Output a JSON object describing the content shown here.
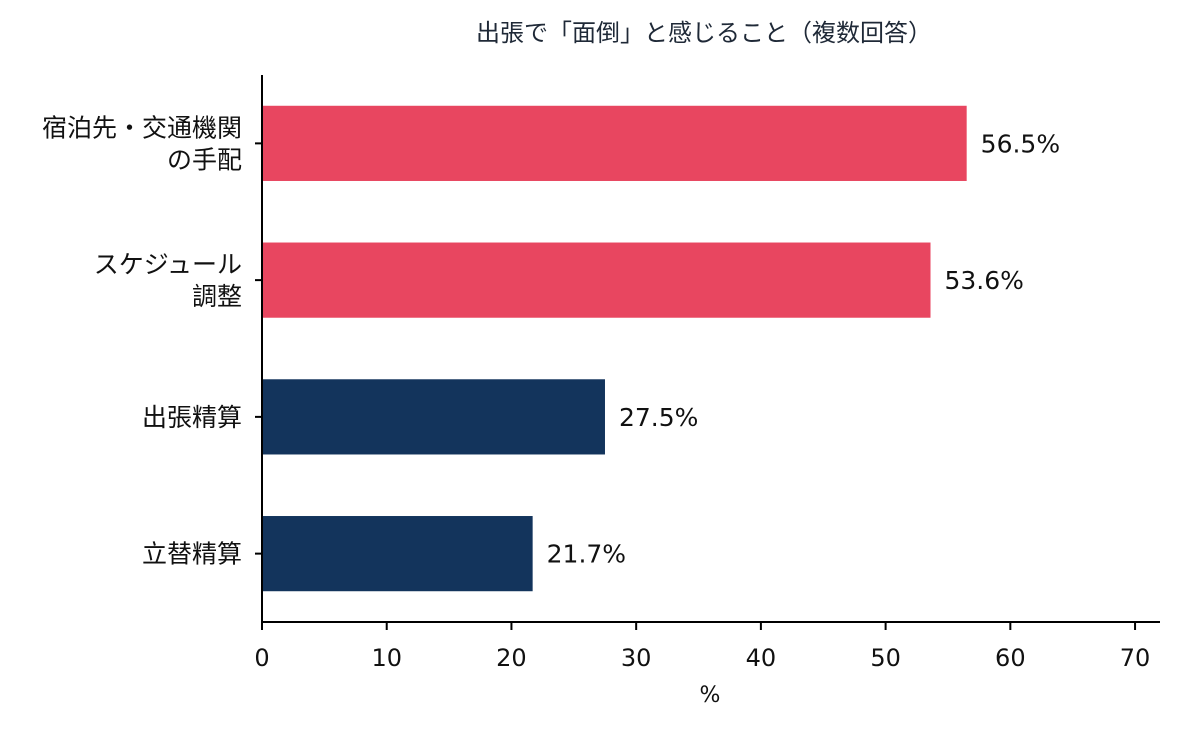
{
  "chart_data": {
    "type": "bar",
    "orientation": "horizontal",
    "title": "出張で「面倒」と感じること（複数回答）",
    "xlabel": "%",
    "ylabel": "",
    "categories": [
      [
        "宿泊先・交通機関",
        "の手配"
      ],
      [
        "スケジュール",
        "調整"
      ],
      [
        "出張精算"
      ],
      [
        "立替精算"
      ]
    ],
    "values": [
      56.5,
      53.6,
      27.5,
      21.7
    ],
    "value_labels": [
      "56.5%",
      "53.6%",
      "27.5%",
      "21.7%"
    ],
    "bar_colors": [
      "#e84660",
      "#e84660",
      "#13345c",
      "#13345c"
    ],
    "xlim": [
      0,
      72
    ],
    "xticks": [
      0,
      10,
      20,
      30,
      40,
      50,
      60,
      70
    ],
    "grid": false,
    "legend": "none"
  }
}
